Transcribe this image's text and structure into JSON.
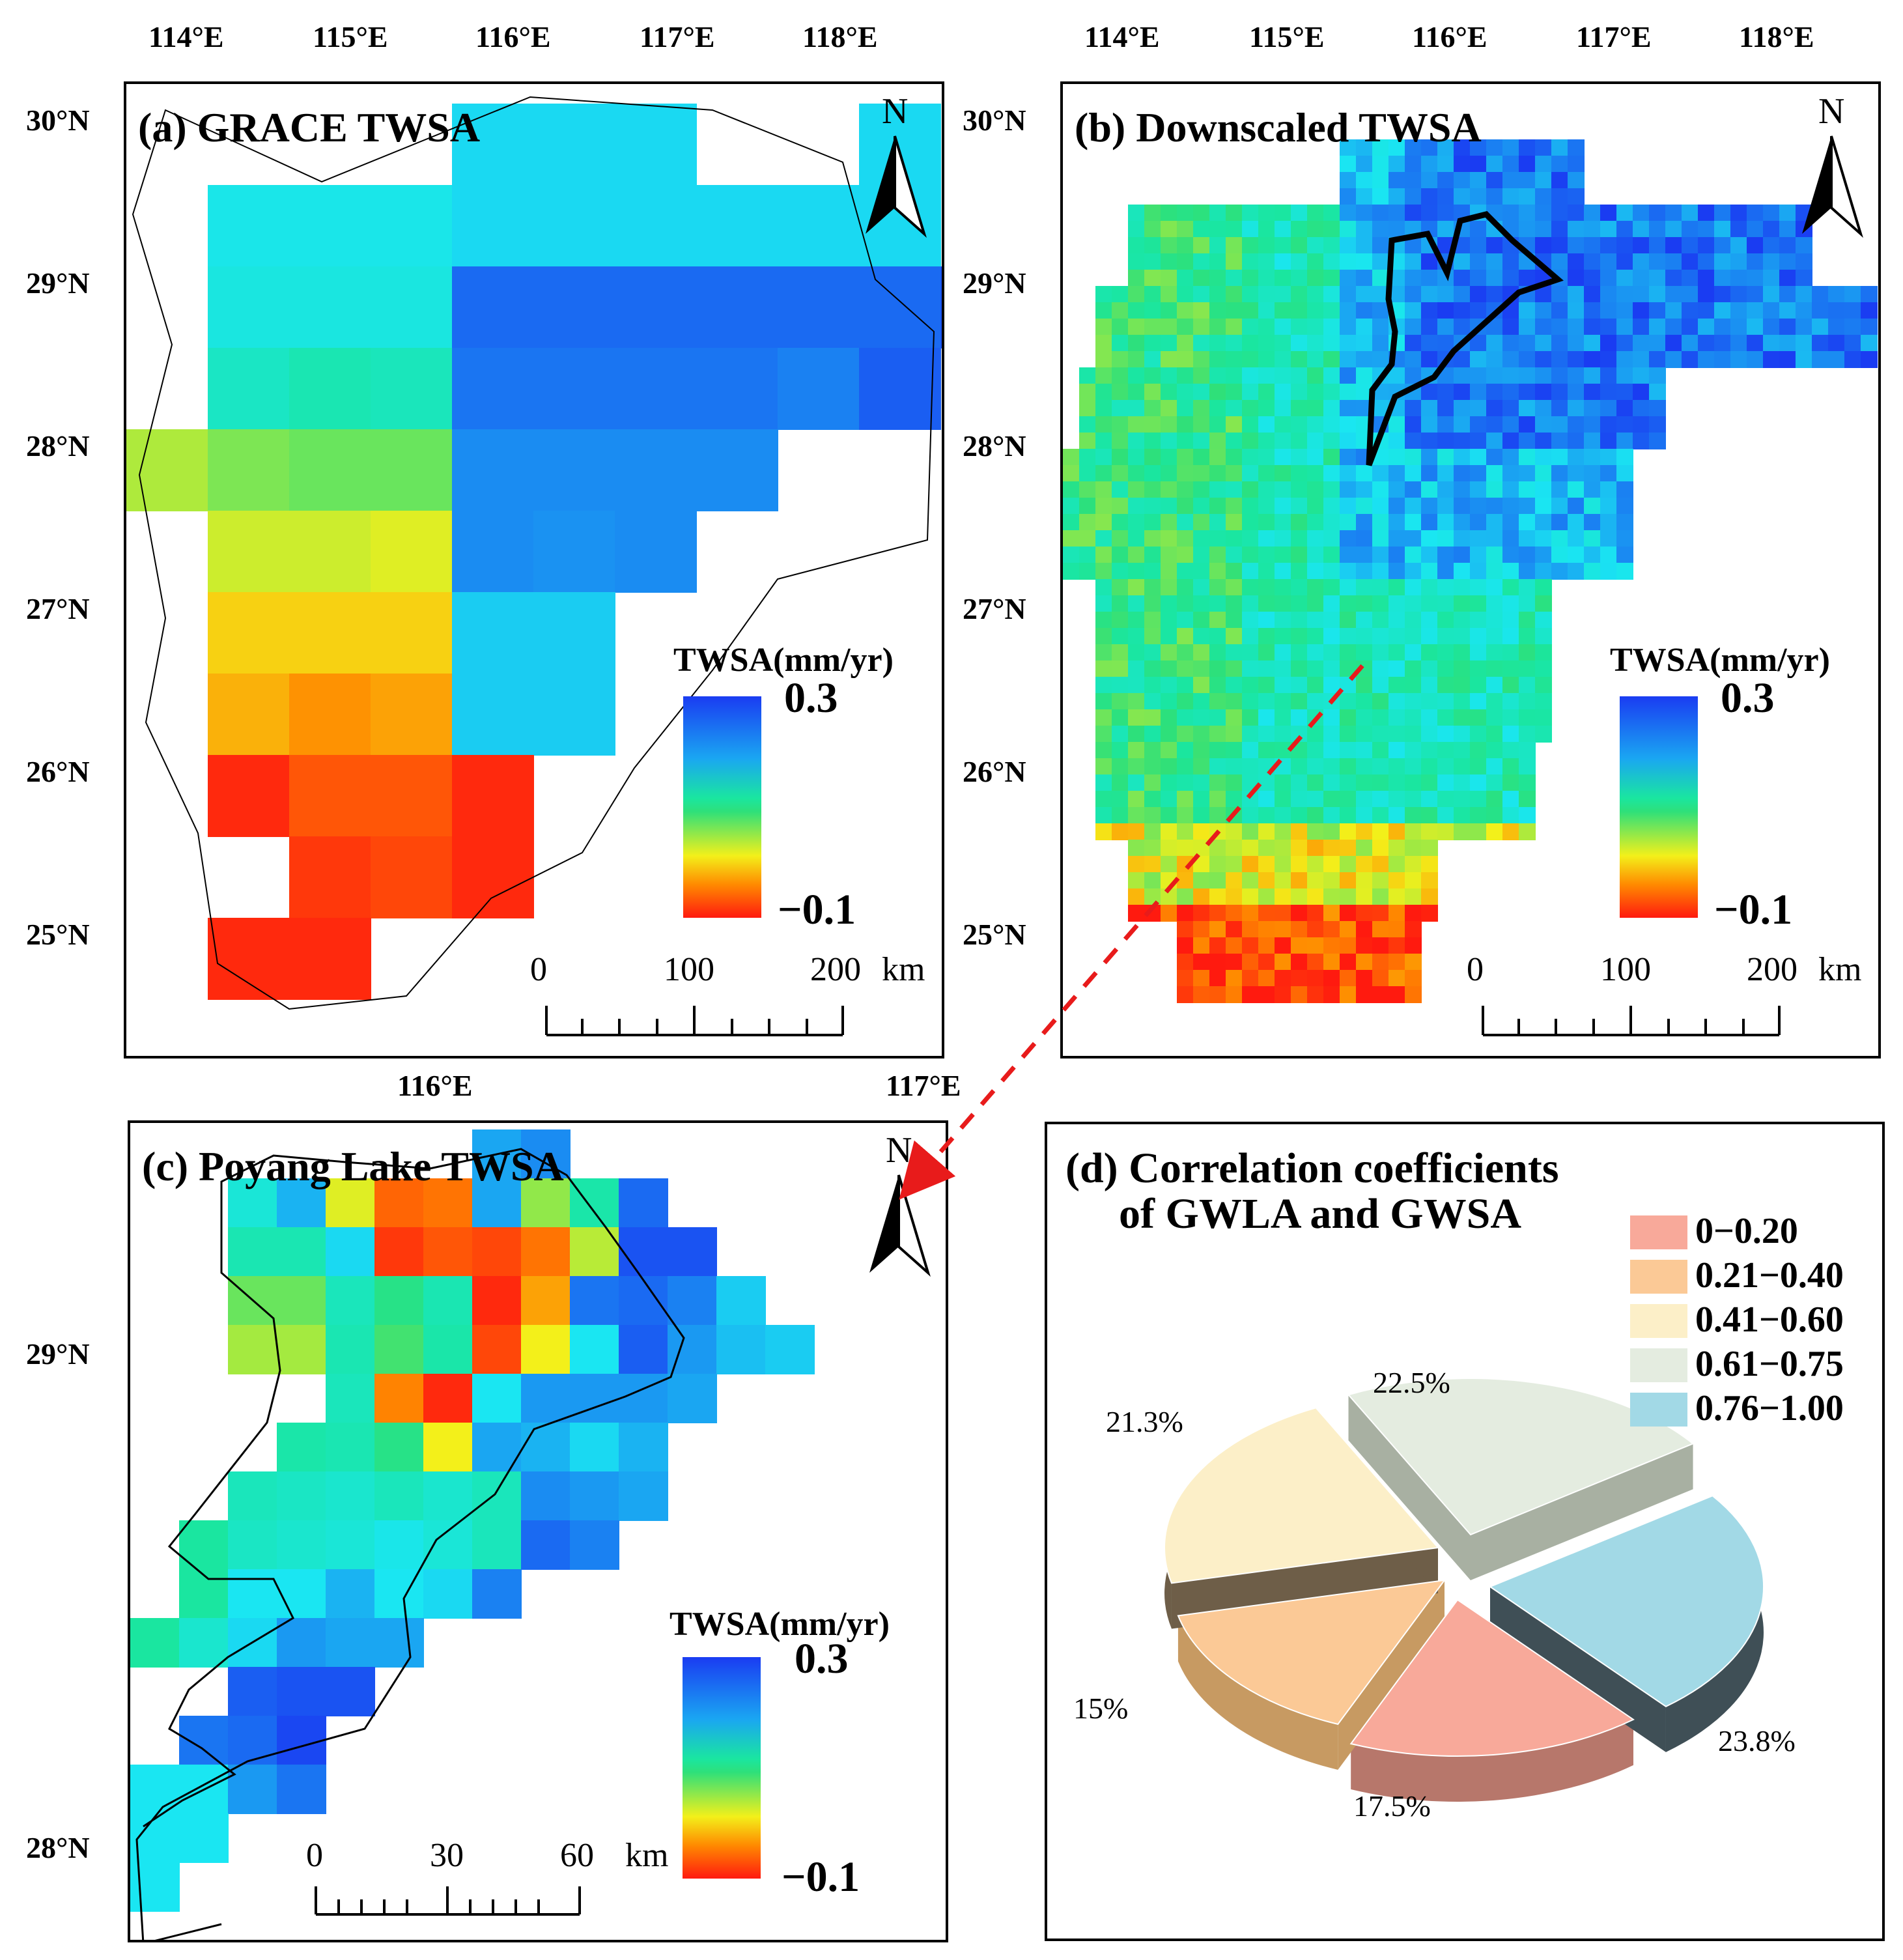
{
  "colors": {
    "low_red": "#ff1a0f",
    "orange": "#ff8a00",
    "yellow": "#f3f01a",
    "green": "#2ee07a",
    "cyan": "#1ae6f2",
    "blue": "#1a3cf2",
    "dashed_arrow": "#e81b1b"
  },
  "panel_a": {
    "title": "(a) GRACE TWSA",
    "lon_ticks": [
      "114°E",
      "115°E",
      "116°E",
      "117°E",
      "118°E"
    ],
    "lat_ticks": [
      "30°N",
      "29°N",
      "28°N",
      "27°N",
      "26°N",
      "25°N"
    ],
    "legend_title": "TWSA(mm/yr)",
    "legend_max": "0.3",
    "legend_min": "−0.1",
    "scale_labels": [
      "0",
      "100",
      "200",
      "km"
    ],
    "north": "N"
  },
  "panel_b": {
    "title": "(b) Downscaled TWSA",
    "lon_ticks": [
      "114°E",
      "115°E",
      "116°E",
      "117°E",
      "118°E"
    ],
    "lat_ticks": [
      "30°N",
      "29°N",
      "28°N",
      "27°N",
      "26°N",
      "25°N"
    ],
    "legend_title": "TWSA(mm/yr)",
    "legend_max": "0.3",
    "legend_min": "−0.1",
    "scale_labels": [
      "0",
      "100",
      "200",
      "km"
    ],
    "north": "N"
  },
  "panel_c": {
    "title": "(c) Poyang Lake TWSA",
    "lon_ticks": [
      "116°E",
      "117°E"
    ],
    "lat_ticks": [
      "29°N",
      "28°N"
    ],
    "legend_title": "TWSA(mm/yr)",
    "legend_max": "0.3",
    "legend_min": "−0.1",
    "scale_labels": [
      "0",
      "30",
      "60",
      "km"
    ],
    "north": "N"
  },
  "panel_d": {
    "title_line1": "(d) Correlation coefficients",
    "title_line2": "of GWLA and GWSA",
    "legend": [
      {
        "label": "0−0.20",
        "color": "#f8a99a"
      },
      {
        "label": "0.21−0.40",
        "color": "#fbc996"
      },
      {
        "label": "0.41−0.60",
        "color": "#fcefc8"
      },
      {
        "label": "0.61−0.75",
        "color": "#e4ece0"
      },
      {
        "label": "0.76−1.00",
        "color": "#a2d9e6"
      }
    ]
  },
  "chart_data": {
    "type": "pie",
    "title": "(d) Correlation coefficients of GWLA and GWSA",
    "categories": [
      "0−0.20",
      "0.21−0.40",
      "0.41−0.60",
      "0.61−0.75",
      "0.76−1.00"
    ],
    "values": [
      17.5,
      15,
      21.3,
      22.5,
      23.8
    ],
    "labels": [
      "17.5%",
      "15%",
      "21.3%",
      "22.5%",
      "23.8%"
    ],
    "legend_position": "top-right"
  }
}
